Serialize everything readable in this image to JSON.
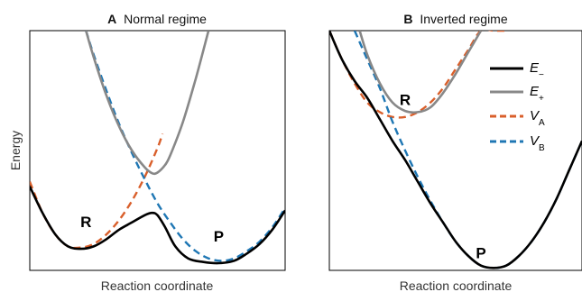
{
  "colors": {
    "E_minus": "#000000",
    "E_plus": "#888888",
    "V_A": "#D95F2B",
    "V_B": "#1F77B4"
  },
  "chart_data": [
    {
      "type": "line",
      "letter": "A",
      "title": "Normal regime",
      "xlabel": "Reaction coordinate",
      "ylabel": "Energy",
      "xlim": [
        0,
        1
      ],
      "ylim": [
        0,
        1
      ],
      "ticks": "none",
      "labels": [
        {
          "text": "R",
          "x": 0.22,
          "y": 0.18
        },
        {
          "text": "P",
          "x": 0.74,
          "y": 0.12
        }
      ],
      "series": [
        {
          "key": "V_A",
          "style": "dashed",
          "x": [
            0,
            0.05,
            0.1,
            0.15,
            0.2,
            0.25,
            0.3,
            0.35,
            0.4,
            0.45,
            0.5,
            0.52
          ],
          "y": [
            0.37,
            0.24,
            0.15,
            0.1,
            0.095,
            0.11,
            0.15,
            0.21,
            0.29,
            0.39,
            0.51,
            0.57
          ]
        },
        {
          "key": "V_B",
          "style": "dashed",
          "x": [
            0.22,
            0.25,
            0.3,
            0.35,
            0.4,
            0.45,
            0.5,
            0.55,
            0.6,
            0.65,
            0.7,
            0.75,
            0.8,
            0.85,
            0.9,
            0.95,
            1.0
          ],
          "y": [
            1.0,
            0.9,
            0.75,
            0.61,
            0.49,
            0.38,
            0.28,
            0.2,
            0.13,
            0.08,
            0.05,
            0.04,
            0.05,
            0.08,
            0.12,
            0.18,
            0.26
          ]
        },
        {
          "key": "E_plus",
          "style": "solid",
          "x": [
            0.22,
            0.25,
            0.3,
            0.35,
            0.4,
            0.45,
            0.48,
            0.5,
            0.53,
            0.55,
            0.6,
            0.65,
            0.7
          ],
          "y": [
            1.0,
            0.89,
            0.73,
            0.6,
            0.5,
            0.43,
            0.405,
            0.408,
            0.44,
            0.48,
            0.62,
            0.8,
            1.0
          ]
        },
        {
          "key": "E_minus",
          "style": "solid",
          "x": [
            0,
            0.05,
            0.1,
            0.15,
            0.2,
            0.25,
            0.3,
            0.35,
            0.4,
            0.45,
            0.48,
            0.5,
            0.53,
            0.57,
            0.62,
            0.68,
            0.74,
            0.8,
            0.85,
            0.9,
            0.95,
            1.0
          ],
          "y": [
            0.35,
            0.24,
            0.15,
            0.1,
            0.09,
            0.1,
            0.13,
            0.17,
            0.2,
            0.23,
            0.24,
            0.23,
            0.18,
            0.1,
            0.05,
            0.035,
            0.03,
            0.04,
            0.07,
            0.11,
            0.17,
            0.25
          ]
        }
      ]
    },
    {
      "type": "line",
      "letter": "B",
      "title": "Inverted regime",
      "xlabel": "Reaction coordinate",
      "ylabel": "",
      "xlim": [
        0,
        1
      ],
      "ylim": [
        0,
        1
      ],
      "ticks": "none",
      "legend_position": "top-right",
      "labels": [
        {
          "text": "R",
          "x": 0.3,
          "y": 0.69
        },
        {
          "text": "P",
          "x": 0.6,
          "y": 0.05
        }
      ],
      "series": [
        {
          "key": "V_A",
          "style": "dashed",
          "x": [
            0,
            0.05,
            0.1,
            0.15,
            0.2,
            0.25,
            0.3,
            0.35,
            0.4,
            0.45,
            0.5,
            0.55,
            0.6,
            0.65,
            0.7
          ],
          "y": [
            1.0,
            0.88,
            0.78,
            0.7,
            0.66,
            0.64,
            0.64,
            0.66,
            0.7,
            0.76,
            0.84,
            0.92,
            1.0,
            1.0,
            1.0
          ]
        },
        {
          "key": "V_B",
          "style": "dashed",
          "x": [
            0.1,
            0.15,
            0.2,
            0.25,
            0.3,
            0.35,
            0.4,
            0.45,
            0.5,
            0.55,
            0.6,
            0.65,
            0.7,
            0.75,
            0.8,
            0.85,
            0.9,
            0.95,
            1.0
          ],
          "y": [
            1.0,
            0.88,
            0.76,
            0.62,
            0.5,
            0.39,
            0.29,
            0.2,
            0.12,
            0.06,
            0.02,
            0.01,
            0.02,
            0.06,
            0.12,
            0.2,
            0.3,
            0.42,
            0.54
          ]
        },
        {
          "key": "E_plus",
          "style": "solid",
          "x": [
            0.12,
            0.15,
            0.2,
            0.25,
            0.3,
            0.35,
            0.4,
            0.45,
            0.5,
            0.55,
            0.6
          ],
          "y": [
            1.0,
            0.9,
            0.78,
            0.7,
            0.665,
            0.66,
            0.68,
            0.74,
            0.82,
            0.91,
            1.0
          ]
        },
        {
          "key": "E_minus",
          "style": "solid",
          "x": [
            0,
            0.05,
            0.1,
            0.15,
            0.2,
            0.25,
            0.3,
            0.35,
            0.4,
            0.45,
            0.5,
            0.55,
            0.6,
            0.65,
            0.7,
            0.75,
            0.8,
            0.85,
            0.9,
            0.95,
            1.0
          ],
          "y": [
            1.0,
            0.88,
            0.79,
            0.72,
            0.63,
            0.54,
            0.46,
            0.37,
            0.28,
            0.2,
            0.12,
            0.06,
            0.02,
            0.01,
            0.02,
            0.06,
            0.12,
            0.2,
            0.3,
            0.42,
            0.54
          ]
        }
      ]
    }
  ],
  "legend": [
    {
      "key": "E_minus",
      "style": "solid",
      "symbol": "E",
      "sub": "−"
    },
    {
      "key": "E_plus",
      "style": "solid",
      "symbol": "E",
      "sub": "+"
    },
    {
      "key": "V_A",
      "style": "dashed",
      "symbol": "V",
      "sub": "A"
    },
    {
      "key": "V_B",
      "style": "dashed",
      "symbol": "V",
      "sub": "B"
    }
  ]
}
